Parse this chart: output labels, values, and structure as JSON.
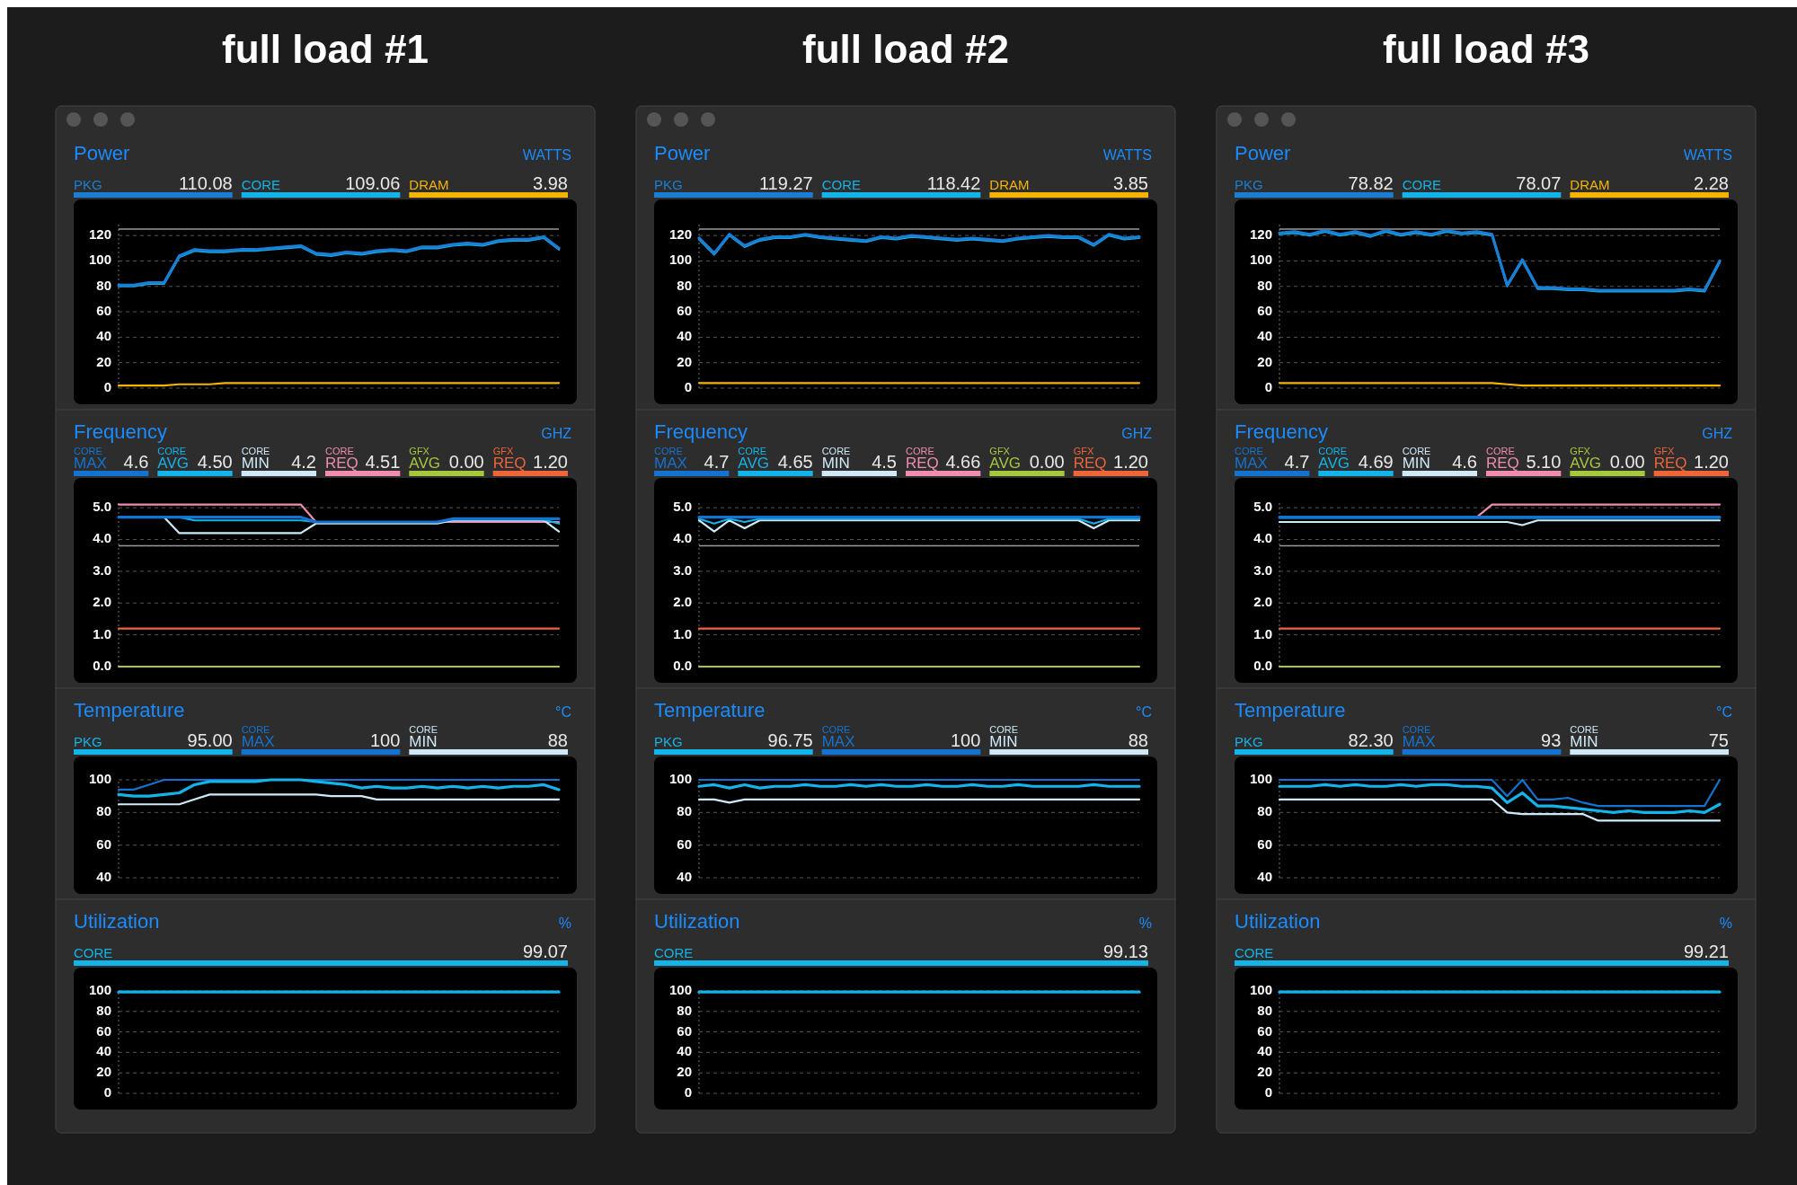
{
  "chart_data": [
    {
      "type": "line",
      "title": "full load #1",
      "subtitle": "Power",
      "ylabel": "WATTS",
      "categories": [
        null,
        null,
        null,
        null,
        null,
        null,
        null,
        null,
        null,
        null,
        null,
        null,
        null,
        null,
        null,
        null,
        null,
        null,
        null,
        null,
        null,
        null,
        null,
        null,
        null,
        null,
        null,
        null,
        null,
        null
      ],
      "ylim": [
        0,
        130
      ],
      "yticks": [
        0,
        20,
        40,
        60,
        80,
        100,
        120
      ],
      "grid": "y",
      "legend": "top",
      "tick_labels": "y",
      "ref_lines": [
        {
          "axis": "y",
          "value": 125,
          "color": "#9a9a9a"
        }
      ],
      "annotations": [
        "110.08",
        "109.06",
        "3.98"
      ],
      "series": [
        {
          "name": "PKG",
          "color": "#1a7fd4",
          "values": [
            81,
            81,
            83,
            83,
            104,
            109,
            108,
            108,
            109,
            109,
            110,
            111,
            112,
            106,
            105,
            107,
            106,
            108,
            109,
            108,
            111,
            111,
            113,
            114,
            113,
            116,
            117,
            117,
            119,
            110
          ]
        },
        {
          "name": "CORE",
          "color": "#12b4ea",
          "values": [
            80,
            80,
            82,
            82,
            103,
            108,
            107,
            107,
            108,
            108,
            109,
            110,
            111,
            105,
            104,
            106,
            105,
            107,
            108,
            107,
            110,
            110,
            112,
            113,
            112,
            115,
            116,
            116,
            118,
            109
          ]
        },
        {
          "name": "DRAM",
          "color": "#f5b400",
          "values": [
            2,
            2,
            2,
            2,
            3,
            3,
            3,
            4,
            4,
            4,
            4,
            4,
            4,
            4,
            4,
            4,
            4,
            4,
            4,
            4,
            4,
            4,
            4,
            4,
            4,
            4,
            4,
            4,
            4,
            4
          ]
        }
      ]
    },
    {
      "type": "line",
      "subtitle": "Frequency",
      "ylabel": "GHZ",
      "categories": [
        null,
        null,
        null,
        null,
        null,
        null,
        null,
        null,
        null,
        null,
        null,
        null,
        null,
        null,
        null,
        null,
        null,
        null,
        null,
        null,
        null,
        null,
        null,
        null,
        null,
        null,
        null,
        null,
        null,
        null
      ],
      "ylim": [
        0,
        5.2
      ],
      "yticks": [
        {
          "value": 0,
          "label": "0.0"
        },
        {
          "value": 1,
          "label": "1.0"
        },
        {
          "value": 2,
          "label": "2.0"
        },
        {
          "value": 3,
          "label": "3.0"
        },
        {
          "value": 4,
          "label": "4.0"
        },
        {
          "value": 5,
          "label": "5.0"
        }
      ],
      "grid": "y",
      "legend": "top",
      "tick_labels": "y",
      "ref_lines": [
        {
          "axis": "y",
          "value": 3.8,
          "color": "#9a9a9a"
        }
      ],
      "annotations": [
        "4.6",
        "4.50",
        "4.2",
        "4.51",
        "0.00",
        "1.20"
      ],
      "series": [
        {
          "name": "$^{CORE}$MAX",
          "color": "#1473d0",
          "values": [
            4.7,
            4.7,
            4.7,
            4.7,
            4.7,
            4.7,
            4.7,
            4.7,
            4.7,
            4.7,
            4.7,
            4.7,
            4.7,
            4.55,
            4.55,
            4.55,
            4.55,
            4.55,
            4.55,
            4.55,
            4.55,
            4.55,
            4.65,
            4.65,
            4.65,
            4.65,
            4.65,
            4.65,
            4.65,
            4.65
          ]
        },
        {
          "name": "$^{CORE}$AVG",
          "color": "#12b4ea",
          "values": [
            4.7,
            4.7,
            4.7,
            4.7,
            4.7,
            4.6,
            4.6,
            4.6,
            4.6,
            4.6,
            4.6,
            4.6,
            4.6,
            4.55,
            4.55,
            4.55,
            4.55,
            4.55,
            4.55,
            4.55,
            4.55,
            4.55,
            4.62,
            4.62,
            4.62,
            4.62,
            4.62,
            4.62,
            4.62,
            4.5
          ]
        },
        {
          "name": "$^{CORE}$MIN",
          "color": "#cfeaf6",
          "values": [
            null,
            null,
            null,
            4.7,
            4.2,
            4.2,
            4.2,
            4.2,
            4.2,
            4.2,
            4.2,
            4.2,
            4.2,
            4.5,
            4.5,
            4.5,
            4.5,
            4.5,
            4.5,
            4.5,
            4.5,
            4.5,
            4.6,
            4.6,
            4.6,
            4.6,
            4.6,
            4.6,
            4.6,
            4.25
          ]
        },
        {
          "name": "$^{CORE}$REQ",
          "color": "#f08cb0",
          "values": [
            5.1,
            5.1,
            5.1,
            5.1,
            5.1,
            5.1,
            5.1,
            5.1,
            5.1,
            5.1,
            5.1,
            5.1,
            5.1,
            4.55,
            4.55,
            4.55,
            4.55,
            4.55,
            4.55,
            4.55,
            4.55,
            4.55,
            4.55,
            4.55,
            4.55,
            4.55,
            4.55,
            4.55,
            4.55,
            4.55
          ]
        },
        {
          "name": "$^{GFX}$AVG",
          "color": "#a6c83c",
          "values": [
            0,
            0,
            0,
            0,
            0,
            0,
            0,
            0,
            0,
            0,
            0,
            0,
            0,
            0,
            0,
            0,
            0,
            0,
            0,
            0,
            0,
            0,
            0,
            0,
            0,
            0,
            0,
            0,
            0,
            0
          ]
        },
        {
          "name": "$^{GFX}$REQ",
          "color": "#f0643a",
          "values": [
            1.2,
            1.2,
            1.2,
            1.2,
            1.2,
            1.2,
            1.2,
            1.2,
            1.2,
            1.2,
            1.2,
            1.2,
            1.2,
            1.2,
            1.2,
            1.2,
            1.2,
            1.2,
            1.2,
            1.2,
            1.2,
            1.2,
            1.2,
            1.2,
            1.2,
            1.2,
            1.2,
            1.2,
            1.2,
            1.2
          ]
        }
      ]
    },
    {
      "type": "line",
      "subtitle": "Temperature",
      "ylabel": "°C",
      "categories": [
        null,
        null,
        null,
        null,
        null,
        null,
        null,
        null,
        null,
        null,
        null,
        null,
        null,
        null,
        null,
        null,
        null,
        null,
        null,
        null,
        null,
        null,
        null,
        null,
        null,
        null,
        null,
        null,
        null,
        null
      ],
      "ylim": [
        40,
        100
      ],
      "yticks": [
        40,
        60,
        80,
        100
      ],
      "grid": "y",
      "legend": "top",
      "tick_labels": "y",
      "annotations": [
        "95.00",
        "100",
        "88"
      ],
      "series": [
        {
          "name": "PKG",
          "color": "#12b4ea",
          "values": [
            91,
            90,
            90,
            91,
            92,
            97,
            99,
            99,
            99,
            99,
            100,
            100,
            100,
            99,
            98,
            97,
            95,
            96,
            95,
            95,
            96,
            95,
            96,
            95,
            96,
            95,
            96,
            96,
            97,
            94
          ]
        },
        {
          "name": "$^{CORE}$MAX",
          "color": "#1473d0",
          "values": [
            94,
            94,
            97,
            100,
            100,
            100,
            100,
            100,
            100,
            100,
            100,
            100,
            100,
            100,
            100,
            100,
            100,
            100,
            100,
            100,
            100,
            100,
            100,
            100,
            100,
            100,
            100,
            100,
            100,
            100
          ]
        },
        {
          "name": "$^{CORE}$MIN",
          "color": "#cfeaf6",
          "values": [
            85,
            85,
            85,
            85,
            85,
            88,
            91,
            91,
            91,
            91,
            91,
            91,
            91,
            91,
            90,
            90,
            90,
            88,
            88,
            88,
            88,
            88,
            88,
            88,
            88,
            88,
            88,
            88,
            88,
            88
          ]
        }
      ]
    },
    {
      "type": "line",
      "subtitle": "Utilization",
      "ylabel": "%",
      "categories": [
        null,
        null,
        null,
        null,
        null,
        null,
        null,
        null,
        null,
        null,
        null,
        null,
        null,
        null,
        null,
        null,
        null,
        null,
        null,
        null,
        null,
        null,
        null,
        null,
        null,
        null,
        null,
        null,
        null,
        null
      ],
      "ylim": [
        0,
        100
      ],
      "yticks": [
        0,
        20,
        40,
        60,
        80,
        100
      ],
      "grid": "y",
      "legend": "top",
      "tick_labels": "y",
      "annotations": [
        "99.07"
      ],
      "series": [
        {
          "name": "CORE",
          "color": "#12b4ea",
          "values": [
            99,
            99,
            99,
            99,
            99,
            99,
            99,
            99,
            99,
            99,
            99,
            99,
            99,
            99,
            99,
            99,
            99,
            99,
            99,
            99,
            99,
            99,
            99,
            99,
            99,
            99,
            99,
            99,
            99,
            99
          ]
        }
      ]
    },
    {
      "type": "line",
      "title": "full load #2",
      "subtitle": "Power",
      "ylabel": "WATTS",
      "categories": [
        null,
        null,
        null,
        null,
        null,
        null,
        null,
        null,
        null,
        null,
        null,
        null,
        null,
        null,
        null,
        null,
        null,
        null,
        null,
        null,
        null,
        null,
        null,
        null,
        null,
        null,
        null,
        null,
        null,
        null
      ],
      "ylim": [
        0,
        130
      ],
      "yticks": [
        0,
        20,
        40,
        60,
        80,
        100,
        120
      ],
      "grid": "y",
      "legend": "top",
      "tick_labels": "y",
      "ref_lines": [
        {
          "axis": "y",
          "value": 125,
          "color": "#9a9a9a"
        }
      ],
      "annotations": [
        "119.27",
        "118.42",
        "3.85"
      ],
      "series": [
        {
          "name": "PKG",
          "color": "#1a7fd4",
          "values": [
            118,
            106,
            121,
            112,
            117,
            119,
            119,
            121,
            119,
            118,
            117,
            116,
            119,
            118,
            120,
            119,
            118,
            117,
            118,
            117,
            116,
            118,
            119,
            120,
            119,
            119,
            113,
            121,
            118,
            119
          ]
        },
        {
          "name": "CORE",
          "color": "#12b4ea",
          "values": [
            117,
            105,
            120,
            111,
            116,
            118,
            118,
            120,
            118,
            117,
            116,
            115,
            118,
            117,
            119,
            118,
            117,
            116,
            117,
            116,
            115,
            117,
            118,
            119,
            118,
            118,
            112,
            120,
            117,
            118
          ]
        },
        {
          "name": "DRAM",
          "color": "#f5b400",
          "values": [
            4,
            4,
            4,
            4,
            4,
            4,
            4,
            4,
            4,
            4,
            4,
            4,
            4,
            4,
            4,
            4,
            4,
            4,
            4,
            4,
            4,
            4,
            4,
            4,
            4,
            4,
            4,
            4,
            4,
            4
          ]
        }
      ]
    },
    {
      "type": "line",
      "subtitle": "Frequency",
      "ylabel": "GHZ",
      "categories": [
        null,
        null,
        null,
        null,
        null,
        null,
        null,
        null,
        null,
        null,
        null,
        null,
        null,
        null,
        null,
        null,
        null,
        null,
        null,
        null,
        null,
        null,
        null,
        null,
        null,
        null,
        null,
        null,
        null,
        null
      ],
      "ylim": [
        0,
        5.2
      ],
      "yticks": [
        {
          "value": 0,
          "label": "0.0"
        },
        {
          "value": 1,
          "label": "1.0"
        },
        {
          "value": 2,
          "label": "2.0"
        },
        {
          "value": 3,
          "label": "3.0"
        },
        {
          "value": 4,
          "label": "4.0"
        },
        {
          "value": 5,
          "label": "5.0"
        }
      ],
      "grid": "y",
      "legend": "top",
      "tick_labels": "y",
      "ref_lines": [
        {
          "axis": "y",
          "value": 3.8,
          "color": "#9a9a9a"
        }
      ],
      "annotations": [
        "4.7",
        "4.65",
        "4.5",
        "4.66",
        "0.00",
        "1.20"
      ],
      "series": [
        {
          "name": "$^{CORE}$MAX",
          "color": "#1473d0",
          "values": [
            4.7,
            4.7,
            4.7,
            4.7,
            4.7,
            4.7,
            4.7,
            4.7,
            4.7,
            4.7,
            4.7,
            4.7,
            4.7,
            4.7,
            4.7,
            4.7,
            4.7,
            4.7,
            4.7,
            4.7,
            4.7,
            4.7,
            4.7,
            4.7,
            4.7,
            4.7,
            4.7,
            4.7,
            4.7,
            4.7
          ]
        },
        {
          "name": "$^{CORE}$AVG",
          "color": "#12b4ea",
          "values": [
            4.65,
            4.5,
            4.65,
            4.55,
            4.65,
            4.65,
            4.65,
            4.65,
            4.65,
            4.65,
            4.65,
            4.65,
            4.65,
            4.65,
            4.65,
            4.65,
            4.65,
            4.65,
            4.65,
            4.65,
            4.65,
            4.65,
            4.65,
            4.65,
            4.65,
            4.65,
            4.5,
            4.65,
            4.65,
            4.65
          ]
        },
        {
          "name": "$^{CORE}$MIN",
          "color": "#cfeaf6",
          "values": [
            4.6,
            4.25,
            4.6,
            4.35,
            4.6,
            4.6,
            4.6,
            4.6,
            4.6,
            4.6,
            4.6,
            4.6,
            4.6,
            4.6,
            4.6,
            4.6,
            4.6,
            4.6,
            4.6,
            4.6,
            4.6,
            4.6,
            4.6,
            4.6,
            4.6,
            4.6,
            4.35,
            4.6,
            4.6,
            4.6
          ]
        },
        {
          "name": "$^{CORE}$REQ",
          "color": "#f08cb0",
          "values": [
            null,
            null,
            null,
            null,
            null,
            null,
            null,
            null,
            null,
            null,
            null,
            null,
            null,
            null,
            null,
            null,
            null,
            null,
            null,
            null,
            null,
            null,
            null,
            null,
            null,
            null,
            null,
            null,
            null,
            null
          ]
        },
        {
          "name": "$^{GFX}$AVG",
          "color": "#a6c83c",
          "values": [
            0,
            0,
            0,
            0,
            0,
            0,
            0,
            0,
            0,
            0,
            0,
            0,
            0,
            0,
            0,
            0,
            0,
            0,
            0,
            0,
            0,
            0,
            0,
            0,
            0,
            0,
            0,
            0,
            0,
            0
          ]
        },
        {
          "name": "$^{GFX}$REQ",
          "color": "#f0643a",
          "values": [
            1.2,
            1.2,
            1.2,
            1.2,
            1.2,
            1.2,
            1.2,
            1.2,
            1.2,
            1.2,
            1.2,
            1.2,
            1.2,
            1.2,
            1.2,
            1.2,
            1.2,
            1.2,
            1.2,
            1.2,
            1.2,
            1.2,
            1.2,
            1.2,
            1.2,
            1.2,
            1.2,
            1.2,
            1.2,
            1.2
          ]
        }
      ]
    },
    {
      "type": "line",
      "subtitle": "Temperature",
      "ylabel": "°C",
      "categories": [
        null,
        null,
        null,
        null,
        null,
        null,
        null,
        null,
        null,
        null,
        null,
        null,
        null,
        null,
        null,
        null,
        null,
        null,
        null,
        null,
        null,
        null,
        null,
        null,
        null,
        null,
        null,
        null,
        null,
        null
      ],
      "ylim": [
        40,
        100
      ],
      "yticks": [
        40,
        60,
        80,
        100
      ],
      "grid": "y",
      "legend": "top",
      "tick_labels": "y",
      "annotations": [
        "96.75",
        "100",
        "88"
      ],
      "series": [
        {
          "name": "PKG",
          "color": "#12b4ea",
          "values": [
            96,
            97,
            95,
            97,
            95,
            96,
            96,
            97,
            96,
            96,
            97,
            96,
            97,
            96,
            96,
            97,
            96,
            96,
            97,
            96,
            96,
            97,
            96,
            96,
            96,
            96,
            97,
            96,
            96,
            96
          ]
        },
        {
          "name": "$^{CORE}$MAX",
          "color": "#1473d0",
          "values": [
            100,
            100,
            100,
            100,
            100,
            100,
            100,
            100,
            100,
            100,
            100,
            100,
            100,
            100,
            100,
            100,
            100,
            100,
            100,
            100,
            100,
            100,
            100,
            100,
            100,
            100,
            100,
            100,
            100,
            100
          ]
        },
        {
          "name": "$^{CORE}$MIN",
          "color": "#cfeaf6",
          "values": [
            88,
            88,
            86,
            88,
            88,
            88,
            88,
            88,
            88,
            88,
            88,
            88,
            88,
            88,
            88,
            88,
            88,
            88,
            88,
            88,
            88,
            88,
            88,
            88,
            88,
            88,
            88,
            88,
            88,
            88
          ]
        }
      ]
    },
    {
      "type": "line",
      "subtitle": "Utilization",
      "ylabel": "%",
      "categories": [
        null,
        null,
        null,
        null,
        null,
        null,
        null,
        null,
        null,
        null,
        null,
        null,
        null,
        null,
        null,
        null,
        null,
        null,
        null,
        null,
        null,
        null,
        null,
        null,
        null,
        null,
        null,
        null,
        null,
        null
      ],
      "ylim": [
        0,
        100
      ],
      "yticks": [
        0,
        20,
        40,
        60,
        80,
        100
      ],
      "grid": "y",
      "legend": "top",
      "tick_labels": "y",
      "annotations": [
        "99.13"
      ],
      "series": [
        {
          "name": "CORE",
          "color": "#12b4ea",
          "values": [
            99,
            99,
            99,
            99,
            99,
            99,
            99,
            99,
            99,
            99,
            99,
            99,
            99,
            99,
            99,
            99,
            99,
            99,
            99,
            99,
            99,
            99,
            99,
            99,
            99,
            99,
            99,
            99,
            99,
            99
          ]
        }
      ]
    },
    {
      "type": "line",
      "title": "full load #3",
      "subtitle": "Power",
      "ylabel": "WATTS",
      "categories": [
        null,
        null,
        null,
        null,
        null,
        null,
        null,
        null,
        null,
        null,
        null,
        null,
        null,
        null,
        null,
        null,
        null,
        null,
        null,
        null,
        null,
        null,
        null,
        null,
        null,
        null,
        null,
        null,
        null,
        null
      ],
      "ylim": [
        0,
        130
      ],
      "yticks": [
        0,
        20,
        40,
        60,
        80,
        100,
        120
      ],
      "grid": "y",
      "legend": "top",
      "tick_labels": "y",
      "ref_lines": [
        {
          "axis": "y",
          "value": 125,
          "color": "#9a9a9a"
        }
      ],
      "annotations": [
        "78.82",
        "78.07",
        "2.28"
      ],
      "series": [
        {
          "name": "PKG",
          "color": "#1a7fd4",
          "values": [
            122,
            123,
            121,
            124,
            121,
            123,
            120,
            124,
            121,
            123,
            121,
            124,
            122,
            123,
            121,
            81,
            101,
            79,
            79,
            78,
            78,
            77,
            77,
            77,
            77,
            77,
            77,
            78,
            77,
            100
          ]
        },
        {
          "name": "CORE",
          "color": "#12b4ea",
          "values": [
            121,
            122,
            120,
            123,
            120,
            122,
            119,
            123,
            120,
            122,
            120,
            123,
            121,
            122,
            120,
            80,
            100,
            78,
            78,
            77,
            77,
            76,
            76,
            76,
            76,
            76,
            76,
            77,
            76,
            99
          ]
        },
        {
          "name": "DRAM",
          "color": "#f5b400",
          "values": [
            4,
            4,
            4,
            4,
            4,
            4,
            4,
            4,
            4,
            4,
            4,
            4,
            4,
            4,
            4,
            3,
            2,
            2,
            2,
            2,
            2,
            2,
            2,
            2,
            2,
            2,
            2,
            2,
            2,
            2
          ]
        }
      ]
    },
    {
      "type": "line",
      "subtitle": "Frequency",
      "ylabel": "GHZ",
      "categories": [
        null,
        null,
        null,
        null,
        null,
        null,
        null,
        null,
        null,
        null,
        null,
        null,
        null,
        null,
        null,
        null,
        null,
        null,
        null,
        null,
        null,
        null,
        null,
        null,
        null,
        null,
        null,
        null,
        null,
        null
      ],
      "ylim": [
        0,
        5.2
      ],
      "yticks": [
        {
          "value": 0,
          "label": "0.0"
        },
        {
          "value": 1,
          "label": "1.0"
        },
        {
          "value": 2,
          "label": "2.0"
        },
        {
          "value": 3,
          "label": "3.0"
        },
        {
          "value": 4,
          "label": "4.0"
        },
        {
          "value": 5,
          "label": "5.0"
        }
      ],
      "grid": "y",
      "legend": "top",
      "tick_labels": "y",
      "ref_lines": [
        {
          "axis": "y",
          "value": 3.8,
          "color": "#9a9a9a"
        }
      ],
      "annotations": [
        "4.7",
        "4.69",
        "4.6",
        "5.10",
        "0.00",
        "1.20"
      ],
      "series": [
        {
          "name": "$^{CORE}$MAX",
          "color": "#1473d0",
          "values": [
            4.7,
            4.7,
            4.7,
            4.7,
            4.7,
            4.7,
            4.7,
            4.7,
            4.7,
            4.7,
            4.7,
            4.7,
            4.7,
            4.7,
            4.7,
            4.7,
            4.7,
            4.7,
            4.7,
            4.7,
            4.7,
            4.7,
            4.7,
            4.7,
            4.7,
            4.7,
            4.7,
            4.7,
            4.7,
            4.7
          ]
        },
        {
          "name": "$^{CORE}$AVG",
          "color": "#12b4ea",
          "values": [
            4.68,
            4.68,
            4.68,
            4.68,
            4.68,
            4.68,
            4.68,
            4.68,
            4.68,
            4.68,
            4.68,
            4.68,
            4.68,
            4.68,
            4.68,
            4.68,
            4.68,
            4.68,
            4.68,
            4.68,
            4.68,
            4.68,
            4.68,
            4.68,
            4.68,
            4.68,
            4.68,
            4.68,
            4.68,
            4.68
          ]
        },
        {
          "name": "$^{CORE}$MIN",
          "color": "#cfeaf6",
          "values": [
            4.55,
            4.55,
            4.55,
            4.55,
            4.55,
            4.55,
            4.55,
            4.55,
            4.55,
            4.55,
            4.55,
            4.55,
            4.55,
            4.55,
            4.55,
            4.55,
            4.45,
            4.6,
            4.6,
            4.6,
            4.6,
            4.6,
            4.6,
            4.6,
            4.6,
            4.6,
            4.6,
            4.6,
            4.6,
            4.6
          ]
        },
        {
          "name": "$^{CORE}$REQ",
          "color": "#f08cb0",
          "values": [
            null,
            null,
            null,
            null,
            null,
            null,
            null,
            null,
            null,
            null,
            null,
            null,
            null,
            4.7,
            5.1,
            5.1,
            5.1,
            5.1,
            5.1,
            5.1,
            5.1,
            5.1,
            5.1,
            5.1,
            5.1,
            5.1,
            5.1,
            5.1,
            5.1,
            5.1
          ]
        },
        {
          "name": "$^{GFX}$AVG",
          "color": "#a6c83c",
          "values": [
            0,
            0,
            0,
            0,
            0,
            0,
            0,
            0,
            0,
            0,
            0,
            0,
            0,
            0,
            0,
            0,
            0,
            0,
            0,
            0,
            0,
            0,
            0,
            0,
            0,
            0,
            0,
            0,
            0,
            0
          ]
        },
        {
          "name": "$^{GFX}$REQ",
          "color": "#f0643a",
          "values": [
            1.2,
            1.2,
            1.2,
            1.2,
            1.2,
            1.2,
            1.2,
            1.2,
            1.2,
            1.2,
            1.2,
            1.2,
            1.2,
            1.2,
            1.2,
            1.2,
            1.2,
            1.2,
            1.2,
            1.2,
            1.2,
            1.2,
            1.2,
            1.2,
            1.2,
            1.2,
            1.2,
            1.2,
            1.2,
            1.2
          ]
        }
      ]
    },
    {
      "type": "line",
      "subtitle": "Temperature",
      "ylabel": "°C",
      "categories": [
        null,
        null,
        null,
        null,
        null,
        null,
        null,
        null,
        null,
        null,
        null,
        null,
        null,
        null,
        null,
        null,
        null,
        null,
        null,
        null,
        null,
        null,
        null,
        null,
        null,
        null,
        null,
        null,
        null,
        null
      ],
      "ylim": [
        40,
        100
      ],
      "yticks": [
        40,
        60,
        80,
        100
      ],
      "grid": "y",
      "legend": "top",
      "tick_labels": "y",
      "annotations": [
        "82.30",
        "93",
        "75"
      ],
      "series": [
        {
          "name": "PKG",
          "color": "#12b4ea",
          "values": [
            96,
            96,
            96,
            97,
            96,
            97,
            96,
            96,
            97,
            96,
            97,
            97,
            96,
            96,
            95,
            86,
            92,
            84,
            84,
            83,
            82,
            81,
            80,
            81,
            80,
            80,
            80,
            81,
            80,
            85
          ]
        },
        {
          "name": "$^{CORE}$MAX",
          "color": "#1473d0",
          "values": [
            100,
            100,
            100,
            100,
            100,
            100,
            100,
            100,
            100,
            100,
            100,
            100,
            100,
            100,
            100,
            90,
            100,
            88,
            88,
            89,
            86,
            84,
            84,
            84,
            84,
            84,
            84,
            84,
            84,
            100
          ]
        },
        {
          "name": "$^{CORE}$MIN",
          "color": "#cfeaf6",
          "values": [
            88,
            88,
            88,
            88,
            88,
            88,
            88,
            88,
            88,
            88,
            88,
            88,
            88,
            88,
            88,
            80,
            79,
            79,
            79,
            79,
            79,
            75,
            75,
            75,
            75,
            75,
            75,
            75,
            75,
            75
          ]
        }
      ]
    },
    {
      "type": "line",
      "subtitle": "Utilization",
      "ylabel": "%",
      "categories": [
        null,
        null,
        null,
        null,
        null,
        null,
        null,
        null,
        null,
        null,
        null,
        null,
        null,
        null,
        null,
        null,
        null,
        null,
        null,
        null,
        null,
        null,
        null,
        null,
        null,
        null,
        null,
        null,
        null,
        null
      ],
      "ylim": [
        0,
        100
      ],
      "yticks": [
        0,
        20,
        40,
        60,
        80,
        100
      ],
      "grid": "y",
      "legend": "top",
      "tick_labels": "y",
      "annotations": [
        "99.21"
      ],
      "series": [
        {
          "name": "CORE",
          "color": "#12b4ea",
          "values": [
            99,
            99,
            99,
            99,
            99,
            99,
            99,
            99,
            99,
            99,
            99,
            99,
            99,
            99,
            99,
            99,
            99,
            99,
            99,
            99,
            99,
            99,
            99,
            99,
            99,
            99,
            99,
            99,
            99,
            99
          ]
        }
      ]
    }
  ]
}
